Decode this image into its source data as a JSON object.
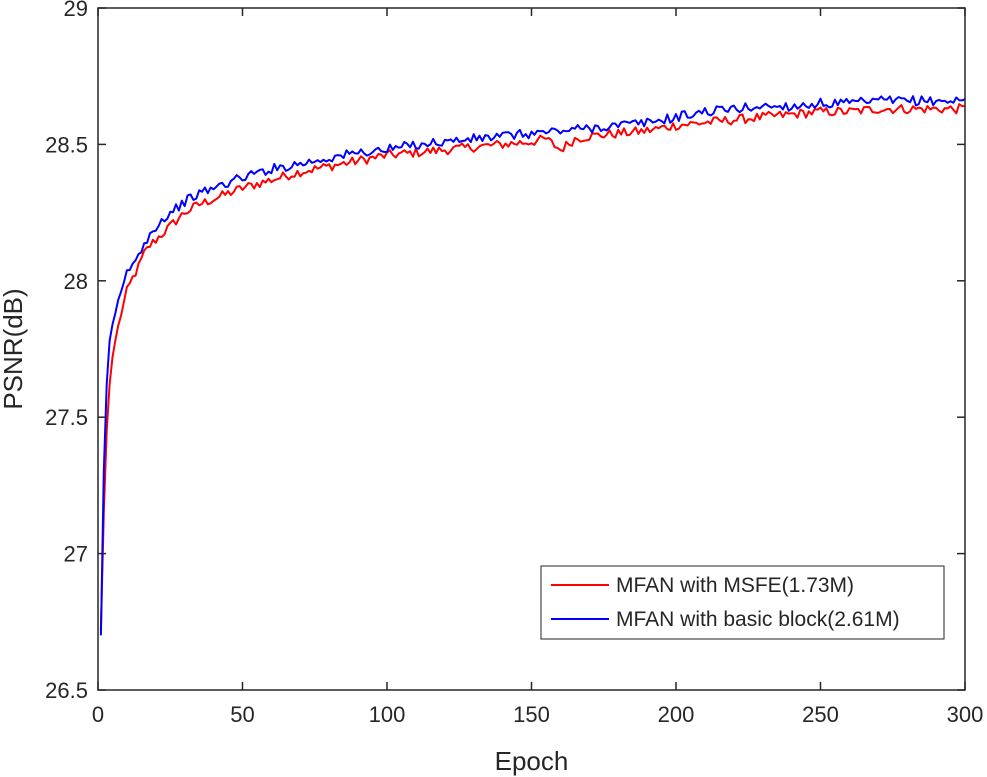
{
  "chart_data": {
    "type": "line",
    "title": "",
    "xlabel": "Epoch",
    "ylabel": "PSNR(dB)",
    "xlim": [
      0,
      300
    ],
    "ylim": [
      26.5,
      29
    ],
    "xticks": [
      0,
      50,
      100,
      150,
      200,
      250,
      300
    ],
    "yticks": [
      26.5,
      27,
      27.5,
      28,
      28.5,
      29
    ],
    "xtick_labels": [
      "0",
      "50",
      "100",
      "150",
      "200",
      "250",
      "300"
    ],
    "ytick_labels": [
      "26.5",
      "27",
      "27.5",
      "28",
      "28.5",
      "29"
    ],
    "grid": false,
    "legend_position": "bottom-right",
    "series": [
      {
        "name": "MFAN with MSFE(1.73M)",
        "color": "#ff0000",
        "x": [
          1,
          2,
          3,
          4,
          5,
          6,
          8,
          10,
          12,
          14,
          16,
          18,
          20,
          25,
          30,
          35,
          40,
          45,
          50,
          60,
          70,
          80,
          90,
          100,
          110,
          120,
          130,
          140,
          150,
          155,
          160,
          165,
          170,
          180,
          190,
          200,
          210,
          220,
          230,
          240,
          250,
          260,
          270,
          280,
          290,
          300
        ],
        "y": [
          26.72,
          27.15,
          27.45,
          27.62,
          27.72,
          27.78,
          27.88,
          27.96,
          28.01,
          28.05,
          28.1,
          28.13,
          28.15,
          28.2,
          28.25,
          28.28,
          28.3,
          28.32,
          28.34,
          28.37,
          28.4,
          28.42,
          28.44,
          28.46,
          28.47,
          28.48,
          28.49,
          28.5,
          28.51,
          28.52,
          28.48,
          28.52,
          28.53,
          28.54,
          28.55,
          28.57,
          28.58,
          28.59,
          28.6,
          28.61,
          28.62,
          28.62,
          28.63,
          28.63,
          28.63,
          28.63
        ]
      },
      {
        "name": "MFAN with basic block(2.61M)",
        "color": "#0000ff",
        "x": [
          1,
          2,
          3,
          4,
          5,
          6,
          8,
          10,
          12,
          14,
          16,
          18,
          20,
          25,
          30,
          35,
          40,
          45,
          50,
          60,
          70,
          80,
          90,
          100,
          110,
          120,
          130,
          140,
          150,
          160,
          170,
          180,
          190,
          200,
          210,
          220,
          230,
          240,
          250,
          260,
          270,
          280,
          290,
          300
        ],
        "y": [
          26.7,
          27.3,
          27.62,
          27.78,
          27.84,
          27.88,
          27.95,
          28.03,
          28.06,
          28.09,
          28.14,
          28.17,
          28.2,
          28.25,
          28.29,
          28.32,
          28.34,
          28.36,
          28.38,
          28.41,
          28.43,
          28.45,
          28.47,
          28.48,
          28.5,
          28.51,
          28.52,
          28.53,
          28.54,
          28.55,
          28.56,
          28.57,
          28.58,
          28.6,
          28.62,
          28.63,
          28.64,
          28.64,
          28.65,
          28.65,
          28.66,
          28.66,
          28.66,
          28.66
        ]
      }
    ]
  }
}
